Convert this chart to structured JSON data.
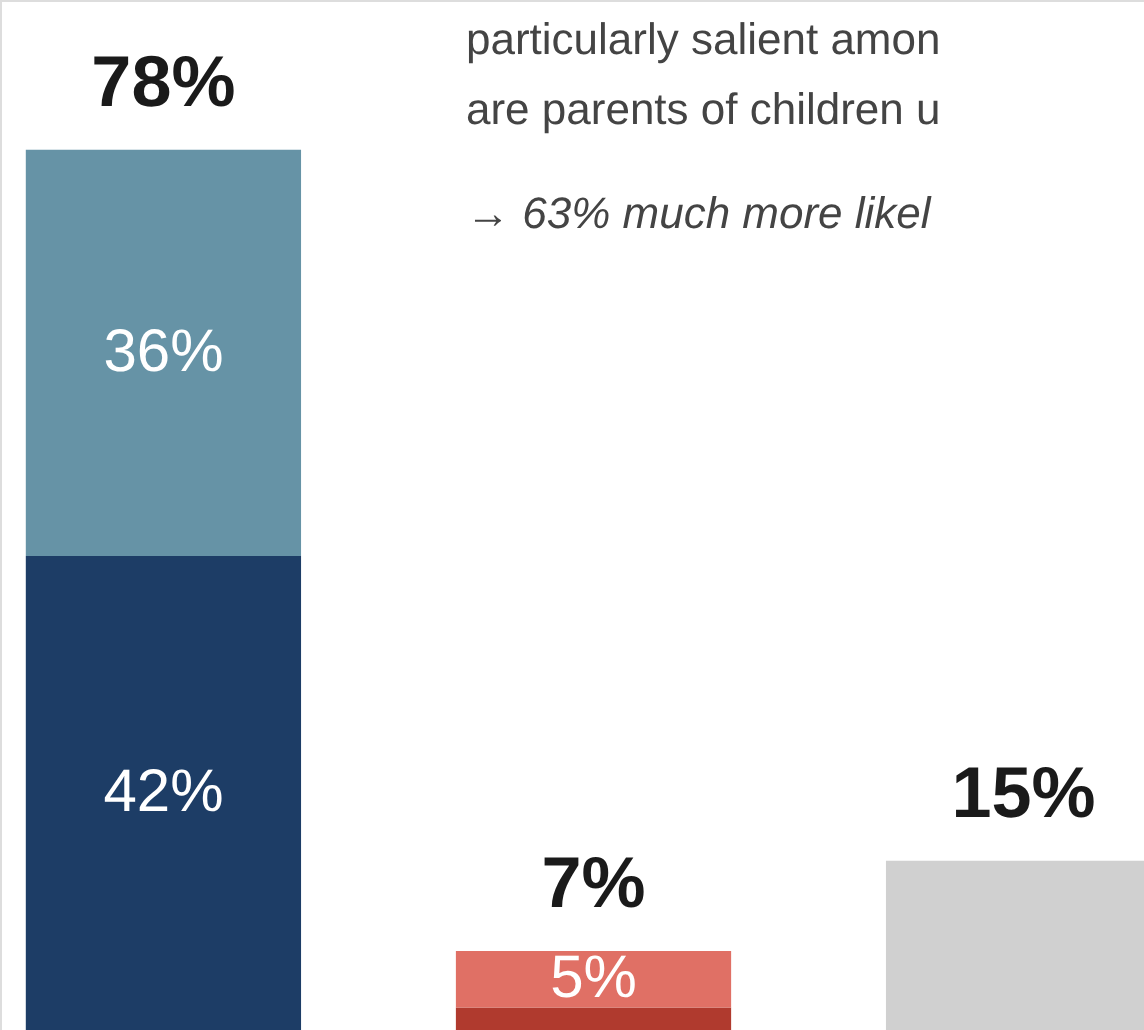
{
  "chart_data": {
    "type": "bar",
    "stacked": true,
    "categories": [
      null,
      null,
      null
    ],
    "series": [
      {
        "values": [
          42,
          2,
          15
        ],
        "colors": [
          "#1d3d66",
          "#b03a2e",
          "#d0d0d0"
        ],
        "value_labels": [
          "42%",
          null,
          null
        ]
      },
      {
        "values": [
          36,
          5,
          null
        ],
        "colors": [
          "#6693a6",
          "#e07065",
          "#d0d0d0"
        ],
        "value_labels": [
          "36%",
          "5%",
          null
        ]
      }
    ],
    "totals": [
      "78%",
      "7%",
      "15%"
    ],
    "annotations": [
      "particularly salient amon",
      "are parents of children u",
      "→ 63% much more likel"
    ]
  }
}
